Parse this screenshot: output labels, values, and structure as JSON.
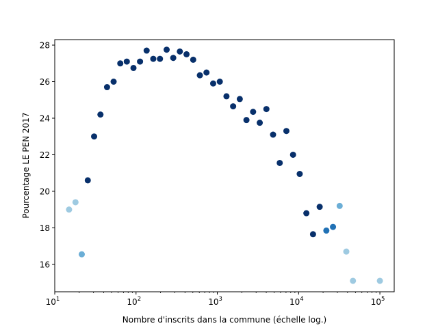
{
  "chart_data": {
    "type": "scatter",
    "title": "",
    "xlabel": "Nombre d'inscrits dans la commune (échelle log.)",
    "ylabel": "Pourcentage LE PEN 2017",
    "xscale": "log",
    "xlim": [
      10,
      150000
    ],
    "ylim": [
      14.5,
      28.3
    ],
    "grid": false,
    "legend": "none",
    "xticks": [
      {
        "value": 10,
        "base": "10",
        "exp": "1"
      },
      {
        "value": 100,
        "base": "10",
        "exp": "2"
      },
      {
        "value": 1000,
        "base": "10",
        "exp": "3"
      },
      {
        "value": 10000,
        "base": "10",
        "exp": "4"
      },
      {
        "value": 100000,
        "base": "10",
        "exp": "5"
      }
    ],
    "yticks": [
      16,
      18,
      20,
      22,
      24,
      26,
      28
    ],
    "colors": {
      "dark": "#08306b",
      "medium": "#2171b5",
      "light": "#6baed6",
      "lightest": "#9ecae1"
    },
    "points": [
      {
        "x": 15,
        "y": 19.0,
        "c": "lightest"
      },
      {
        "x": 18,
        "y": 19.4,
        "c": "lightest"
      },
      {
        "x": 21.5,
        "y": 16.55,
        "c": "light"
      },
      {
        "x": 25.5,
        "y": 20.6,
        "c": "dark"
      },
      {
        "x": 30.5,
        "y": 23.0,
        "c": "dark"
      },
      {
        "x": 36.5,
        "y": 24.2,
        "c": "dark"
      },
      {
        "x": 44,
        "y": 25.7,
        "c": "dark"
      },
      {
        "x": 53,
        "y": 26.0,
        "c": "dark"
      },
      {
        "x": 64,
        "y": 27.0,
        "c": "dark"
      },
      {
        "x": 77,
        "y": 27.1,
        "c": "dark"
      },
      {
        "x": 93,
        "y": 26.75,
        "c": "dark"
      },
      {
        "x": 112,
        "y": 27.1,
        "c": "dark"
      },
      {
        "x": 135,
        "y": 27.7,
        "c": "dark"
      },
      {
        "x": 163,
        "y": 27.25,
        "c": "dark"
      },
      {
        "x": 197,
        "y": 27.25,
        "c": "dark"
      },
      {
        "x": 238,
        "y": 27.75,
        "c": "dark"
      },
      {
        "x": 287,
        "y": 27.3,
        "c": "dark"
      },
      {
        "x": 346,
        "y": 27.65,
        "c": "dark"
      },
      {
        "x": 418,
        "y": 27.5,
        "c": "dark"
      },
      {
        "x": 505,
        "y": 27.2,
        "c": "dark"
      },
      {
        "x": 610,
        "y": 26.35,
        "c": "dark"
      },
      {
        "x": 736,
        "y": 26.5,
        "c": "dark"
      },
      {
        "x": 889,
        "y": 25.9,
        "c": "dark"
      },
      {
        "x": 1073,
        "y": 26.0,
        "c": "dark"
      },
      {
        "x": 1296,
        "y": 25.2,
        "c": "dark"
      },
      {
        "x": 1565,
        "y": 24.65,
        "c": "dark"
      },
      {
        "x": 1890,
        "y": 25.05,
        "c": "dark"
      },
      {
        "x": 2282,
        "y": 23.9,
        "c": "dark"
      },
      {
        "x": 2756,
        "y": 24.35,
        "c": "dark"
      },
      {
        "x": 3328,
        "y": 23.75,
        "c": "dark"
      },
      {
        "x": 4018,
        "y": 24.5,
        "c": "dark"
      },
      {
        "x": 4852,
        "y": 23.1,
        "c": "dark"
      },
      {
        "x": 5860,
        "y": 21.55,
        "c": "dark"
      },
      {
        "x": 7076,
        "y": 23.3,
        "c": "dark"
      },
      {
        "x": 8545,
        "y": 22.0,
        "c": "dark"
      },
      {
        "x": 10318,
        "y": 20.95,
        "c": "dark"
      },
      {
        "x": 12460,
        "y": 18.8,
        "c": "dark"
      },
      {
        "x": 15046,
        "y": 17.65,
        "c": "dark"
      },
      {
        "x": 18168,
        "y": 19.15,
        "c": "dark"
      },
      {
        "x": 21939,
        "y": 17.85,
        "c": "medium"
      },
      {
        "x": 26492,
        "y": 18.05,
        "c": "medium"
      },
      {
        "x": 31990,
        "y": 19.2,
        "c": "light"
      },
      {
        "x": 38630,
        "y": 16.7,
        "c": "lightest"
      },
      {
        "x": 46648,
        "y": 15.1,
        "c": "lightest"
      },
      {
        "x": 100000,
        "y": 15.1,
        "c": "lightest"
      }
    ]
  }
}
